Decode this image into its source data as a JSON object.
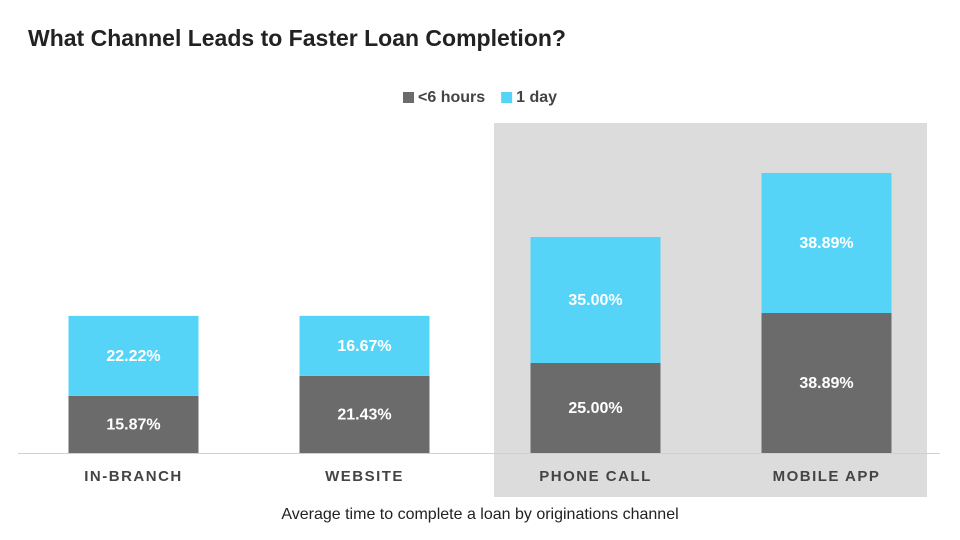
{
  "chart_data": {
    "type": "stacked_bar",
    "title": "What Channel Leads to Faster Loan Completion?",
    "caption": "Average time to complete a loan by originations channel",
    "categories": [
      "IN-BRANCH",
      "WEBSITE",
      "PHONE CALL",
      "MOBILE APP"
    ],
    "series": [
      {
        "name": "<6 hours",
        "color": "#6b6b6b",
        "values": [
          15.87,
          21.43,
          25.0,
          38.89
        ],
        "value_labels": [
          "15.87%",
          "21.43%",
          "25.00%",
          "38.89%"
        ]
      },
      {
        "name": "1 day",
        "color": "#56d4f8",
        "values": [
          22.22,
          16.67,
          35.0,
          38.89
        ],
        "value_labels": [
          "22.22%",
          "16.67%",
          "35.00%",
          "38.89%"
        ]
      }
    ],
    "legend": "top"
  }
}
